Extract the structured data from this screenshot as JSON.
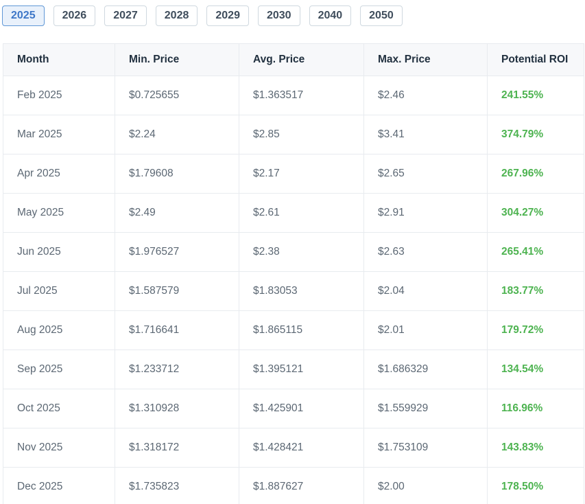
{
  "tabs": [
    {
      "label": "2025",
      "active": true
    },
    {
      "label": "2026",
      "active": false
    },
    {
      "label": "2027",
      "active": false
    },
    {
      "label": "2028",
      "active": false
    },
    {
      "label": "2029",
      "active": false
    },
    {
      "label": "2030",
      "active": false
    },
    {
      "label": "2040",
      "active": false
    },
    {
      "label": "2050",
      "active": false
    }
  ],
  "table": {
    "columns": [
      "Month",
      "Min. Price",
      "Avg. Price",
      "Max. Price",
      "Potential ROI"
    ],
    "rows": [
      {
        "month": "Feb 2025",
        "min": "$0.725655",
        "avg": "$1.363517",
        "max": "$2.46",
        "roi": "241.55%"
      },
      {
        "month": "Mar 2025",
        "min": "$2.24",
        "avg": "$2.85",
        "max": "$3.41",
        "roi": "374.79%"
      },
      {
        "month": "Apr 2025",
        "min": "$1.79608",
        "avg": "$2.17",
        "max": "$2.65",
        "roi": "267.96%"
      },
      {
        "month": "May 2025",
        "min": "$2.49",
        "avg": "$2.61",
        "max": "$2.91",
        "roi": "304.27%"
      },
      {
        "month": "Jun 2025",
        "min": "$1.976527",
        "avg": "$2.38",
        "max": "$2.63",
        "roi": "265.41%"
      },
      {
        "month": "Jul 2025",
        "min": "$1.587579",
        "avg": "$1.83053",
        "max": "$2.04",
        "roi": "183.77%"
      },
      {
        "month": "Aug 2025",
        "min": "$1.716641",
        "avg": "$1.865115",
        "max": "$2.01",
        "roi": "179.72%"
      },
      {
        "month": "Sep 2025",
        "min": "$1.233712",
        "avg": "$1.395121",
        "max": "$1.686329",
        "roi": "134.54%"
      },
      {
        "month": "Oct 2025",
        "min": "$1.310928",
        "avg": "$1.425901",
        "max": "$1.559929",
        "roi": "116.96%"
      },
      {
        "month": "Nov 2025",
        "min": "$1.318172",
        "avg": "$1.428421",
        "max": "$1.753109",
        "roi": "143.83%"
      },
      {
        "month": "Dec 2025",
        "min": "$1.735823",
        "avg": "$1.887627",
        "max": "$2.00",
        "roi": "178.50%"
      }
    ]
  },
  "colors": {
    "roi_positive": "#4db350",
    "active_tab_text": "#3e77c8",
    "active_tab_bg": "#e9f1fb",
    "active_tab_border": "#5f97d6",
    "header_bg": "#f7f8fa",
    "table_border": "#e8ebef"
  }
}
